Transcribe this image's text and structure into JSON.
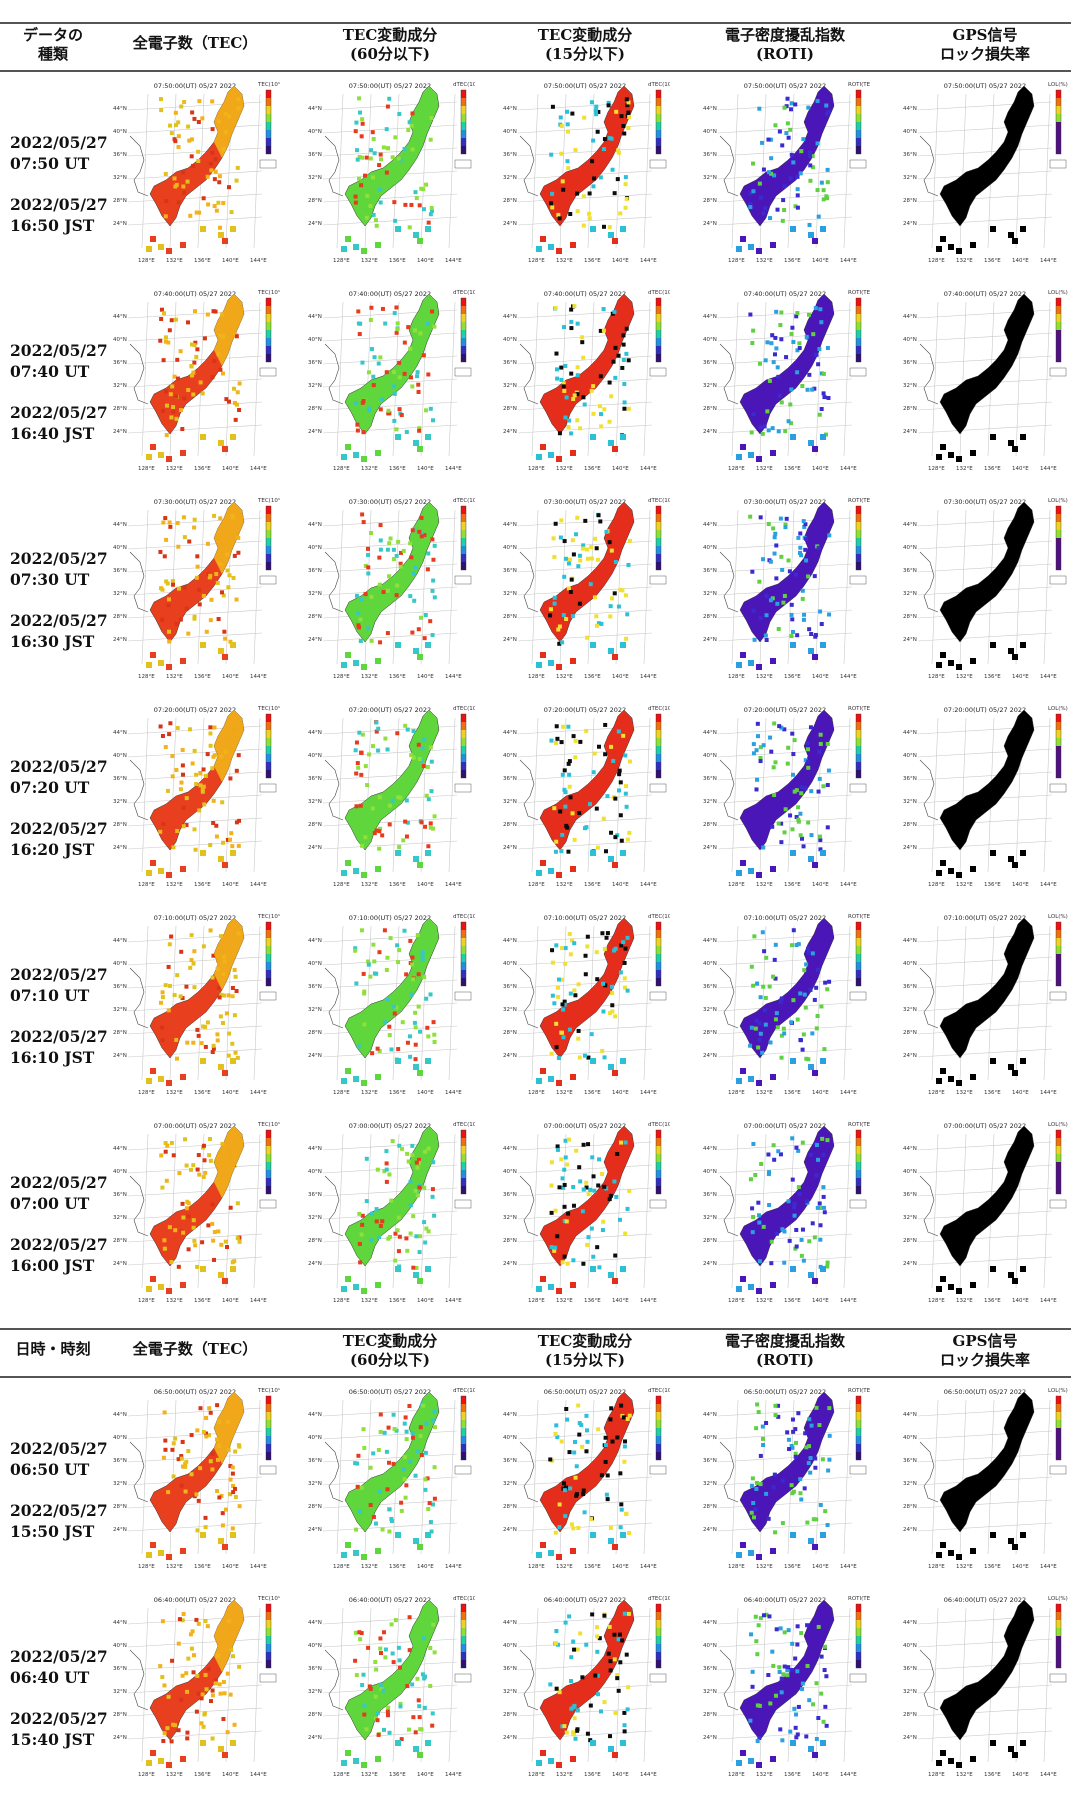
{
  "header_top": {
    "col0": [
      "データの",
      "種類"
    ],
    "col1": [
      "全電子数（TEC）"
    ],
    "col2": [
      "TEC変動成分",
      "(60分以下)"
    ],
    "col3": [
      "TEC変動成分",
      "(15分以下)"
    ],
    "col4": [
      "電子密度擾乱指数",
      "(ROTI)"
    ],
    "col5": [
      "GPS信号",
      "ロック損失率"
    ]
  },
  "header_mid": {
    "col0": [
      "日時・時刻"
    ],
    "col1": [
      "全電子数（TEC）"
    ],
    "col2": [
      "TEC変動成分",
      "(60分以下)"
    ],
    "col3": [
      "TEC変動成分",
      "(15分以下)"
    ],
    "col4": [
      "電子密度擾乱指数",
      "(ROTI)"
    ],
    "col5": [
      "GPS信号",
      "ロック損失率"
    ]
  },
  "rows": [
    {
      "date1": "2022/05/27",
      "ut": "07:50 UT",
      "date2": "2022/05/27",
      "jst": "16:50 JST",
      "map_title": "07:50:00(UT) 05/27 2022"
    },
    {
      "date1": "2022/05/27",
      "ut": "07:40 UT",
      "date2": "2022/05/27",
      "jst": "16:40 JST",
      "map_title": "07:40:00(UT) 05/27 2022"
    },
    {
      "date1": "2022/05/27",
      "ut": "07:30 UT",
      "date2": "2022/05/27",
      "jst": "16:30 JST",
      "map_title": "07:30:00(UT) 05/27 2022"
    },
    {
      "date1": "2022/05/27",
      "ut": "07:20 UT",
      "date2": "2022/05/27",
      "jst": "16:20 JST",
      "map_title": "07:20:00(UT) 05/27 2022"
    },
    {
      "date1": "2022/05/27",
      "ut": "07:10 UT",
      "date2": "2022/05/27",
      "jst": "16:10 JST",
      "map_title": "07:10:00(UT) 05/27 2022"
    },
    {
      "date1": "2022/05/27",
      "ut": "07:00 UT",
      "date2": "2022/05/27",
      "jst": "16:00 JST",
      "map_title": "07:00:00(UT) 05/27 2022"
    },
    {
      "date1": "2022/05/27",
      "ut": "06:50 UT",
      "date2": "2022/05/27",
      "jst": "15:50 JST",
      "map_title": "06:50:00(UT) 05/27 2022"
    },
    {
      "date1": "2022/05/27",
      "ut": "06:40 UT",
      "date2": "2022/05/27",
      "jst": "15:40 JST",
      "map_title": "06:40:00(UT) 05/27 2022"
    }
  ],
  "map_axes": {
    "lat_ticks": [
      "44°N",
      "40°N",
      "36°N",
      "32°N",
      "28°N",
      "24°N"
    ],
    "lon_ticks": [
      "128°E",
      "132°E",
      "136°E",
      "140°E",
      "144°E"
    ]
  },
  "colorbar_units": [
    "TEC(10¹⁶m⁻²)",
    "dTEC(10¹⁶m⁻²)",
    "dTEC(10¹⁶m⁻²)",
    "ROTI(TECU/min)",
    "LOL(%)"
  ],
  "colors": {
    "tec_fill": "#e8401e",
    "tec_north": "#f2b21a",
    "dtec60_fill": "#5fd63c",
    "dtec15_fill": "#e52d1c",
    "dtec15_dark": "#0c0c0c",
    "roti_fill": "#4a16b8",
    "lol_fill": "#000000",
    "rule": "#555555"
  }
}
